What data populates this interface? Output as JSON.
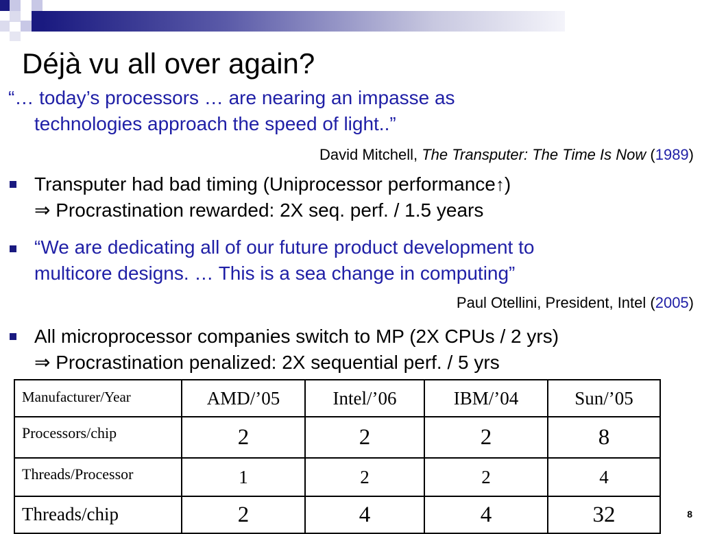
{
  "slide": {
    "title": "Déjà vu all over again?",
    "quote1": {
      "line1": "“… today’s processors … are nearing an impasse as",
      "line2": "technologies approach the speed of light..”",
      "attribution_author": "David Mitchell, ",
      "attribution_work": "The Transputer: The Time Is Now",
      "attribution_open": " (",
      "attribution_year": "1989",
      "attribution_close": ")"
    },
    "bullet1": {
      "line1_a": "Transputer had bad timing (Uniprocessor performance",
      "line1_arrow": "↑",
      "line1_b": ")",
      "line2_arrow": "⇒",
      "line2": " Procrastination rewarded: 2X seq. perf. / 1.5 years"
    },
    "bullet2": {
      "line1": " “We are dedicating all of our future product development to",
      "line2": "multicore designs. … This is a sea change in computing”",
      "attribution_author": "Paul Otellini, President, Intel (",
      "attribution_year": "2005",
      "attribution_close": ")"
    },
    "bullet3": {
      "line1": "All microprocessor companies switch to MP (2X CPUs / 2 yrs)",
      "line2_arrow": "⇒",
      "line2": " Procrastination penalized: 2X sequential perf. / 5 yrs"
    },
    "table": {
      "header": [
        "Manufacturer/Year",
        "AMD/’05",
        "Intel/’06",
        "IBM/’04",
        "Sun/’05"
      ],
      "rows": [
        [
          "Processors/chip",
          "2",
          "2",
          "2",
          "8"
        ],
        [
          "Threads/Processor",
          "1",
          "2",
          "2",
          "4"
        ],
        [
          "Threads/chip",
          "2",
          "4",
          "4",
          "32"
        ]
      ]
    },
    "page_number": "8"
  },
  "colors": {
    "accent_blue": "#1f1fa6",
    "header_navy": "#1a1a80"
  }
}
